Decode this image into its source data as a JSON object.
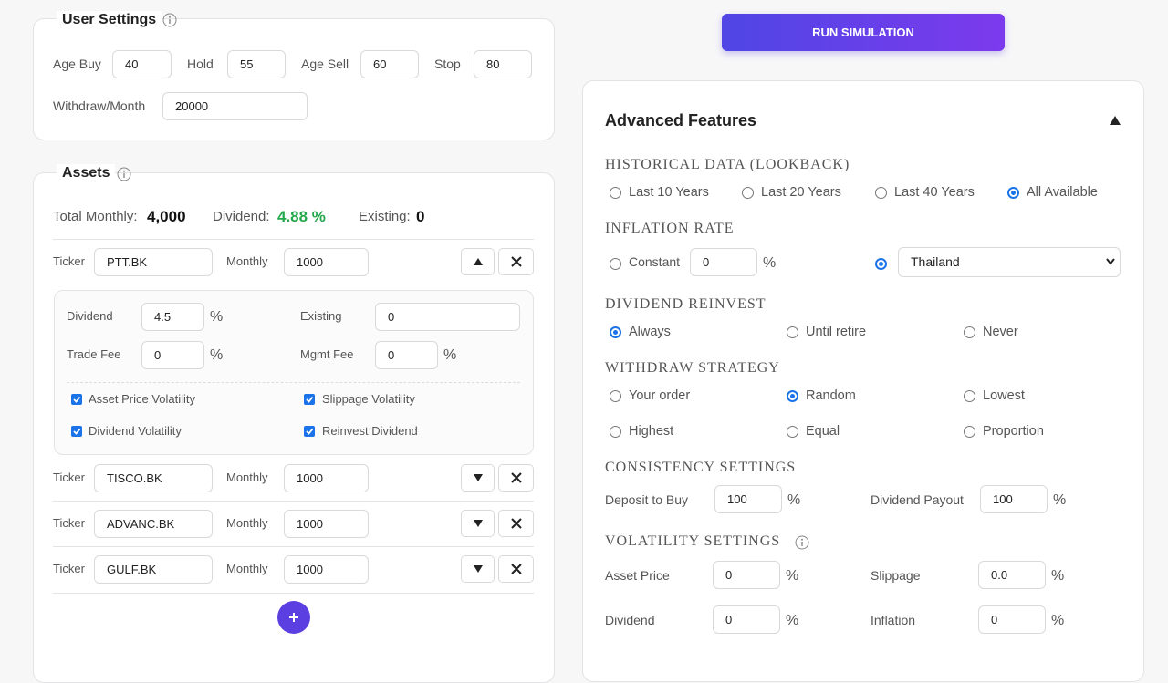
{
  "user_settings": {
    "title": "User Settings",
    "fields": [
      {
        "label": "Age Buy",
        "value": "40"
      },
      {
        "label": "Hold",
        "value": "55"
      },
      {
        "label": "Age Sell",
        "value": "60"
      },
      {
        "label": "Stop",
        "value": "80"
      },
      {
        "label": "Withdraw/Month",
        "value": "20000"
      }
    ]
  },
  "assets": {
    "title": "Assets",
    "summary": [
      {
        "label": "Total Monthly:",
        "value": "4,000"
      },
      {
        "label": "Dividend:",
        "value": "4.88 %"
      },
      {
        "label": "Existing:",
        "value": "0"
      }
    ],
    "ticker_label": "Ticker",
    "monthly_label": "Monthly",
    "rows": [
      {
        "ticker": "PTT.BK",
        "monthly": "1000",
        "expanded": true
      },
      {
        "ticker": "TISCO.BK",
        "monthly": "1000",
        "expanded": false
      },
      {
        "ticker": "ADVANC.BK",
        "monthly": "1000",
        "expanded": false
      },
      {
        "ticker": "GULF.BK",
        "monthly": "1000",
        "expanded": false
      }
    ],
    "details": {
      "fields": [
        {
          "label": "Dividend",
          "value": "4.5",
          "unit": "%"
        },
        {
          "label": "Existing",
          "value": "0"
        },
        {
          "label": "Trade Fee",
          "value": "0",
          "unit": "%"
        },
        {
          "label": "Mgmt Fee",
          "value": "0",
          "unit": "%"
        }
      ],
      "checks": [
        {
          "label": "Asset Price Volatility",
          "checked": true
        },
        {
          "label": "Slippage Volatility",
          "checked": true
        },
        {
          "label": "Dividend Volatility",
          "checked": true
        },
        {
          "label": "Reinvest Dividend",
          "checked": true
        }
      ]
    }
  },
  "run_button": "RUN SIMULATION",
  "advanced": {
    "title": "Advanced Features",
    "lookback": {
      "heading": "HISTORICAL DATA (LOOKBACK)",
      "options": [
        "Last 10 Years",
        "Last 20 Years",
        "Last 40 Years",
        "All Available"
      ],
      "selected": 3
    },
    "inflation": {
      "heading": "INFLATION RATE",
      "constant_label": "Constant",
      "constant_value": "0",
      "unit": "%",
      "country": "Thailand",
      "selected": 1
    },
    "reinvest": {
      "heading": "DIVIDEND REINVEST",
      "options": [
        "Always",
        "Until retire",
        "Never"
      ],
      "selected": 0
    },
    "withdraw": {
      "heading": "WITHDRAW STRATEGY",
      "options": [
        "Your order",
        "Random",
        "Lowest",
        "Highest",
        "Equal",
        "Proportion"
      ],
      "selected": 1
    },
    "consistency": {
      "heading": "CONSISTENCY SETTINGS",
      "fields": [
        {
          "label": "Deposit to Buy",
          "value": "100",
          "unit": "%"
        },
        {
          "label": "Dividend Payout",
          "value": "100",
          "unit": "%"
        }
      ]
    },
    "volatility": {
      "heading": "VOLATILITY SETTINGS",
      "fields": [
        {
          "label": "Asset Price",
          "value": "0",
          "unit": "%"
        },
        {
          "label": "Slippage",
          "value": "0.0",
          "unit": "%"
        },
        {
          "label": "Dividend",
          "value": "0",
          "unit": "%"
        },
        {
          "label": "Inflation",
          "value": "0",
          "unit": "%"
        }
      ]
    }
  }
}
